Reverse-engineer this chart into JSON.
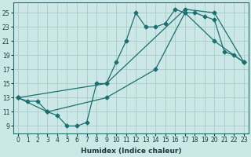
{
  "xlabel": "Humidex (Indice chaleur)",
  "bg_color": "#cce8e6",
  "line_color": "#1a7070",
  "grid_color": "#aaccca",
  "xlim": [
    -0.5,
    23.5
  ],
  "ylim": [
    8.0,
    26.5
  ],
  "yticks": [
    9,
    11,
    13,
    15,
    17,
    19,
    21,
    23,
    25
  ],
  "xticks": [
    0,
    1,
    2,
    3,
    4,
    5,
    6,
    7,
    8,
    9,
    10,
    11,
    12,
    13,
    14,
    15,
    16,
    17,
    18,
    19,
    20,
    21,
    22,
    23
  ],
  "line1_x": [
    0,
    1,
    2,
    3,
    4,
    5,
    6,
    7,
    8,
    9,
    10,
    11,
    12,
    13,
    14,
    15,
    16,
    17,
    18,
    19,
    20,
    21,
    22,
    23
  ],
  "line1_y": [
    13,
    12.5,
    12.5,
    11,
    10.5,
    9,
    9,
    9.5,
    15,
    15,
    18,
    21,
    25,
    23,
    23,
    23.5,
    25.5,
    25,
    25,
    24.5,
    24,
    19.5,
    19,
    18
  ],
  "line2_x": [
    0,
    9,
    17,
    20,
    23
  ],
  "line2_y": [
    13,
    15,
    25.5,
    25,
    18
  ],
  "line3_x": [
    0,
    3,
    9,
    14,
    17,
    20,
    23
  ],
  "line3_y": [
    13,
    11,
    13,
    17,
    25,
    21,
    18
  ]
}
